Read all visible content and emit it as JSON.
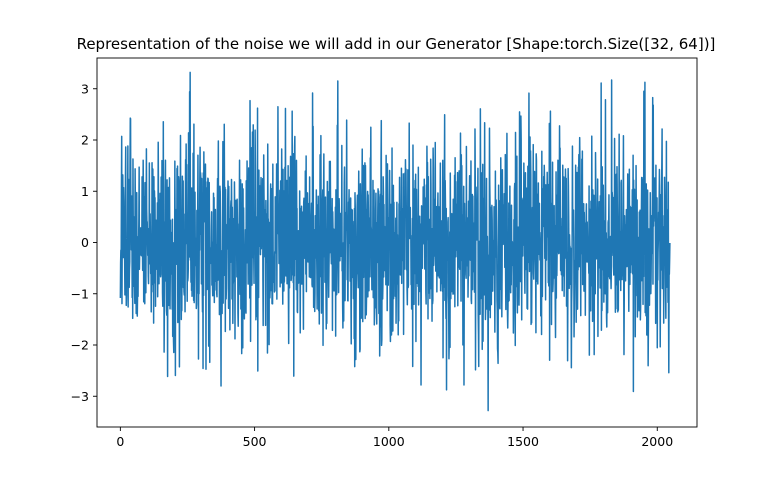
{
  "chart_data": {
    "type": "line",
    "title": "Representation of the noise we will add in our Generator [Shape:torch.Size([32, 64])]",
    "xlabel": "",
    "ylabel": "",
    "xlim": [
      -87,
      2148
    ],
    "ylim": [
      -3.6,
      3.6
    ],
    "xticks": [
      0,
      500,
      1000,
      1500,
      2000
    ],
    "yticks": [
      -3,
      -2,
      -1,
      0,
      1,
      2,
      3
    ],
    "xtick_labels": [
      "0",
      "500",
      "1000",
      "1500",
      "2000"
    ],
    "ytick_labels": [
      "−3",
      "−2",
      "−1",
      "0",
      "1",
      "2",
      "3"
    ],
    "grid": false,
    "legend": "none",
    "series": [
      {
        "color": "#1f77b4",
        "n_points": 2048,
        "x_start": 0,
        "x_end": 2047,
        "distribution": "standard normal noise, mean 0, std 1",
        "max": 3.32,
        "min": -3.28,
        "notable_points": [
          {
            "x": 260,
            "y": 3.32
          },
          {
            "x": 810,
            "y": 3.15
          },
          {
            "x": 1370,
            "y": -3.28
          },
          {
            "x": 375,
            "y": -2.8
          },
          {
            "x": 1120,
            "y": -2.78
          },
          {
            "x": 1280,
            "y": -2.78
          },
          {
            "x": 5,
            "y": 2.07
          },
          {
            "x": 1950,
            "y": 2.95
          }
        ]
      }
    ]
  }
}
